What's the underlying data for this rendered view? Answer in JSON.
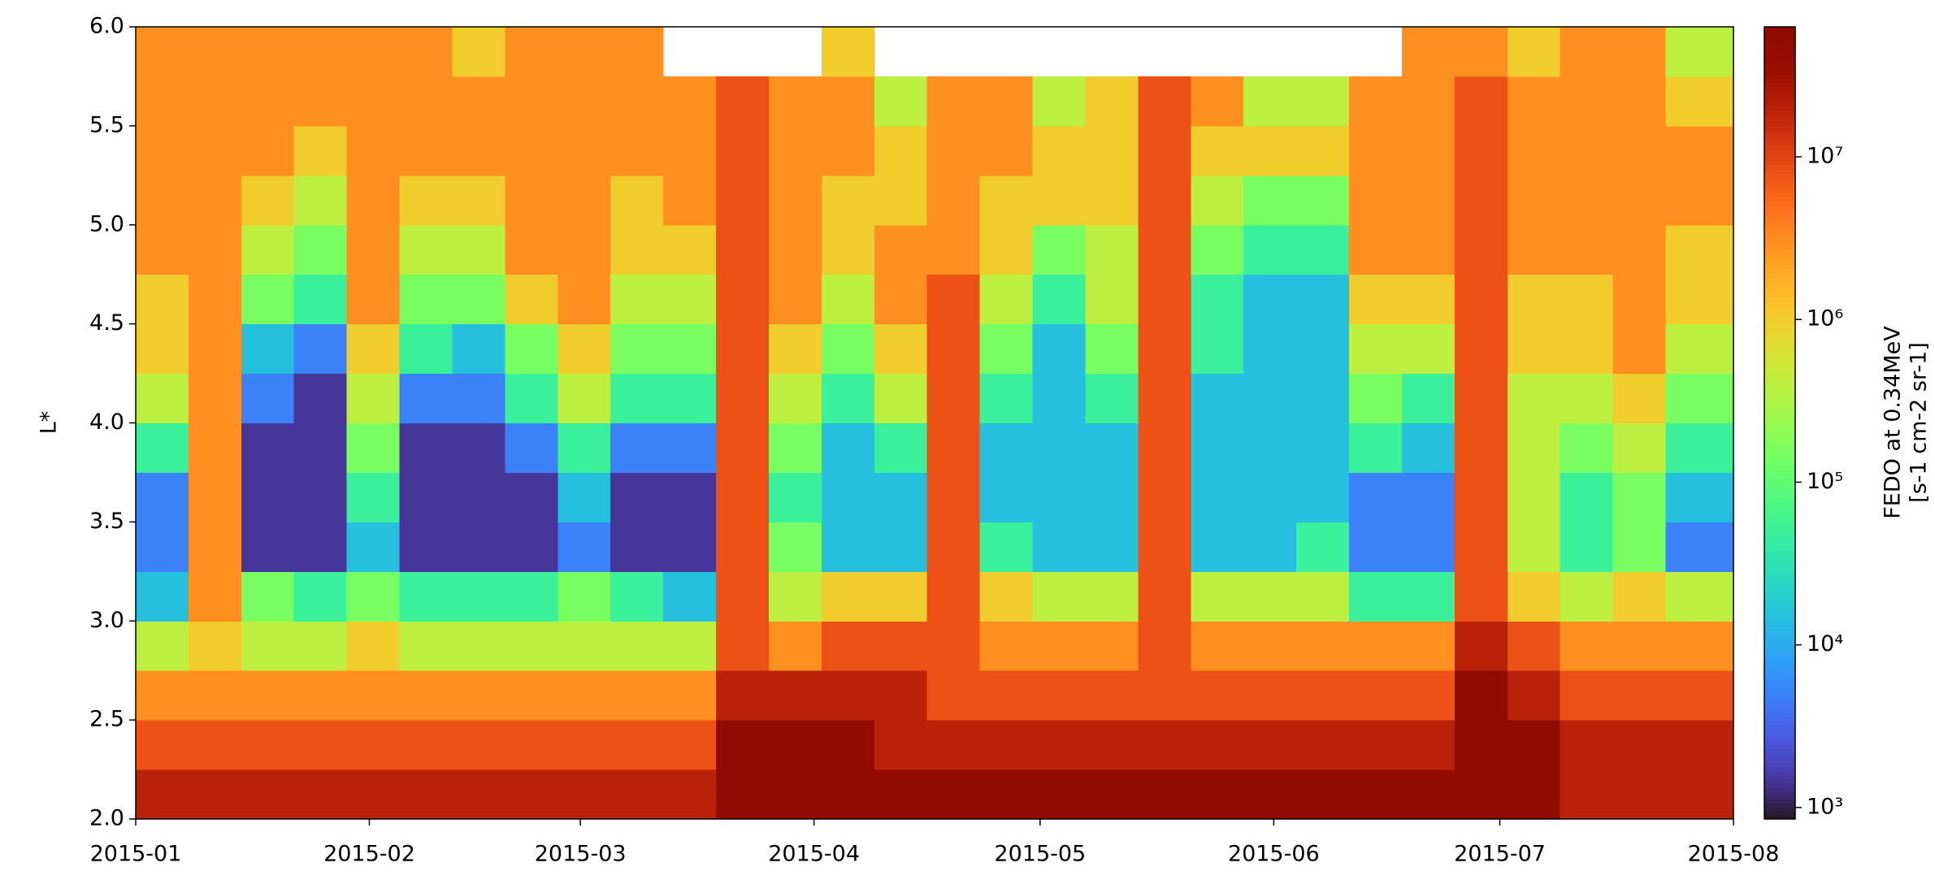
{
  "chart_data": {
    "type": "heatmap",
    "ylabel": "L*",
    "colorbar_label": [
      "FEDO at 0.34MeV",
      "[s-1 cm-2 sr-1]"
    ],
    "cmap": "turbo",
    "zscale": "log",
    "zlim": [
      850,
      63000000
    ],
    "zticks": [
      {
        "value": 1000,
        "label": "10³"
      },
      {
        "value": 10000,
        "label": "10⁴"
      },
      {
        "value": 100000,
        "label": "10⁵"
      },
      {
        "value": 1000000,
        "label": "10⁶"
      },
      {
        "value": 10000000,
        "label": "10⁷"
      }
    ],
    "xlim": [
      0,
      212
    ],
    "xticks": [
      {
        "value": 0,
        "label": "2015-01"
      },
      {
        "value": 31,
        "label": "2015-02"
      },
      {
        "value": 59,
        "label": "2015-03"
      },
      {
        "value": 90,
        "label": "2015-04"
      },
      {
        "value": 120,
        "label": "2015-05"
      },
      {
        "value": 151,
        "label": "2015-06"
      },
      {
        "value": 181,
        "label": "2015-07"
      },
      {
        "value": 212,
        "label": "2015-08"
      }
    ],
    "ylim": [
      2,
      6
    ],
    "yticks": [
      {
        "value": 2,
        "label": "2.0"
      },
      {
        "value": 2.5,
        "label": "2.5"
      },
      {
        "value": 3,
        "label": "3.0"
      },
      {
        "value": 3.5,
        "label": "3.5"
      },
      {
        "value": 4,
        "label": "4.0"
      },
      {
        "value": 4.5,
        "label": "4.5"
      },
      {
        "value": 5,
        "label": "5.0"
      },
      {
        "value": 5.5,
        "label": "5.5"
      },
      {
        "value": 6,
        "label": "6.0"
      }
    ],
    "xbins": [
      0,
      7,
      14,
      21,
      28,
      35,
      42,
      49,
      56,
      63,
      70,
      77,
      84,
      91,
      98,
      105,
      112,
      119,
      126,
      133,
      140,
      147,
      154,
      161,
      168,
      175,
      182,
      189,
      196,
      203,
      212
    ],
    "ybins": [
      2,
      2.25,
      2.5,
      2.75,
      3,
      3.25,
      3.5,
      3.75,
      4,
      4.25,
      4.5,
      4.75,
      5,
      5.25,
      5.5,
      5.75,
      6
    ],
    "values": [
      [
        20000000.0,
        8000000.0,
        3000000.0,
        400000.0,
        15000.0,
        5000.0,
        5000.0,
        50000.0,
        400000.0,
        1000000.0,
        1000000.0,
        3000000.0,
        3000000.0,
        3000000.0,
        3000000.0,
        3000000.0
      ],
      [
        20000000.0,
        8000000.0,
        3000000.0,
        1000000.0,
        3000000.0,
        3000000.0,
        3000000.0,
        3000000.0,
        3000000.0,
        3000000.0,
        3000000.0,
        3000000.0,
        3000000.0,
        3000000.0,
        3000000.0,
        3000000.0
      ],
      [
        20000000.0,
        8000000.0,
        3000000.0,
        400000.0,
        150000.0,
        1500.0,
        1500.0,
        1500.0,
        5000.0,
        15000.0,
        150000.0,
        400000.0,
        1000000.0,
        3000000.0,
        3000000.0,
        3000000.0
      ],
      [
        20000000.0,
        8000000.0,
        3000000.0,
        400000.0,
        50000.0,
        1500.0,
        1500.0,
        1500.0,
        1500.0,
        5000.0,
        50000.0,
        150000.0,
        400000.0,
        1000000.0,
        3000000.0,
        3000000.0
      ],
      [
        20000000.0,
        8000000.0,
        3000000.0,
        1000000.0,
        150000.0,
        15000.0,
        50000.0,
        150000.0,
        400000.0,
        1000000.0,
        3000000.0,
        3000000.0,
        3000000.0,
        3000000.0,
        3000000.0,
        3000000.0
      ],
      [
        20000000.0,
        8000000.0,
        3000000.0,
        400000.0,
        50000.0,
        1500.0,
        1500.0,
        1500.0,
        5000.0,
        50000.0,
        150000.0,
        400000.0,
        1000000.0,
        3000000.0,
        3000000.0,
        3000000.0
      ],
      [
        20000000.0,
        8000000.0,
        3000000.0,
        400000.0,
        50000.0,
        1500.0,
        1500.0,
        1500.0,
        5000.0,
        15000.0,
        150000.0,
        400000.0,
        1000000.0,
        3000000.0,
        3000000.0,
        1000000.0
      ],
      [
        20000000.0,
        8000000.0,
        3000000.0,
        400000.0,
        50000.0,
        1500.0,
        1500.0,
        5000.0,
        50000.0,
        150000.0,
        1000000.0,
        3000000.0,
        3000000.0,
        3000000.0,
        3000000.0,
        3000000.0
      ],
      [
        20000000.0,
        8000000.0,
        3000000.0,
        400000.0,
        150000.0,
        5000.0,
        15000.0,
        50000.0,
        400000.0,
        1000000.0,
        3000000.0,
        3000000.0,
        3000000.0,
        3000000.0,
        3000000.0,
        3000000.0
      ],
      [
        20000000.0,
        8000000.0,
        3000000.0,
        400000.0,
        50000.0,
        1500.0,
        1500.0,
        5000.0,
        50000.0,
        150000.0,
        400000.0,
        1000000.0,
        1000000.0,
        3000000.0,
        3000000.0,
        3000000.0
      ],
      [
        20000000.0,
        8000000.0,
        3000000.0,
        400000.0,
        15000.0,
        1500.0,
        1500.0,
        5000.0,
        50000.0,
        150000.0,
        400000.0,
        1000000.0,
        3000000.0,
        3000000.0,
        3000000.0,
        null
      ],
      [
        50000000.0,
        50000000.0,
        20000000.0,
        8000000.0,
        8000000.0,
        8000000.0,
        8000000.0,
        8000000.0,
        8000000.0,
        8000000.0,
        8000000.0,
        8000000.0,
        8000000.0,
        8000000.0,
        8000000.0,
        null
      ],
      [
        50000000.0,
        50000000.0,
        20000000.0,
        3000000.0,
        400000.0,
        150000.0,
        50000.0,
        150000.0,
        400000.0,
        1000000.0,
        3000000.0,
        3000000.0,
        3000000.0,
        3000000.0,
        3000000.0,
        null
      ],
      [
        50000000.0,
        50000000.0,
        20000000.0,
        8000000.0,
        1000000.0,
        15000.0,
        15000.0,
        15000.0,
        50000.0,
        150000.0,
        400000.0,
        1000000.0,
        1000000.0,
        3000000.0,
        3000000.0,
        1000000.0
      ],
      [
        50000000.0,
        20000000.0,
        20000000.0,
        8000000.0,
        1000000.0,
        15000.0,
        15000.0,
        50000.0,
        400000.0,
        1000000.0,
        3000000.0,
        3000000.0,
        1000000.0,
        1000000.0,
        400000.0,
        null
      ],
      [
        50000000.0,
        20000000.0,
        8000000.0,
        8000000.0,
        8000000.0,
        8000000.0,
        8000000.0,
        8000000.0,
        8000000.0,
        8000000.0,
        8000000.0,
        3000000.0,
        3000000.0,
        3000000.0,
        3000000.0,
        null
      ],
      [
        50000000.0,
        20000000.0,
        8000000.0,
        3000000.0,
        1000000.0,
        50000.0,
        15000.0,
        15000.0,
        50000.0,
        150000.0,
        400000.0,
        1000000.0,
        1000000.0,
        3000000.0,
        3000000.0,
        null
      ],
      [
        50000000.0,
        20000000.0,
        8000000.0,
        3000000.0,
        400000.0,
        15000.0,
        15000.0,
        15000.0,
        15000.0,
        15000.0,
        50000.0,
        150000.0,
        1000000.0,
        1000000.0,
        400000.0,
        null
      ],
      [
        50000000.0,
        20000000.0,
        8000000.0,
        3000000.0,
        400000.0,
        15000.0,
        15000.0,
        15000.0,
        50000.0,
        150000.0,
        400000.0,
        400000.0,
        1000000.0,
        1000000.0,
        1000000.0,
        null
      ],
      [
        50000000.0,
        20000000.0,
        8000000.0,
        8000000.0,
        8000000.0,
        8000000.0,
        8000000.0,
        8000000.0,
        8000000.0,
        8000000.0,
        8000000.0,
        8000000.0,
        8000000.0,
        8000000.0,
        8000000.0,
        null
      ],
      [
        50000000.0,
        20000000.0,
        8000000.0,
        3000000.0,
        400000.0,
        15000.0,
        15000.0,
        15000.0,
        15000.0,
        50000.0,
        50000.0,
        150000.0,
        400000.0,
        1000000.0,
        3000000.0,
        null
      ],
      [
        50000000.0,
        20000000.0,
        8000000.0,
        3000000.0,
        400000.0,
        15000.0,
        15000.0,
        15000.0,
        15000.0,
        15000.0,
        15000.0,
        50000.0,
        150000.0,
        1000000.0,
        400000.0,
        null
      ],
      [
        50000000.0,
        20000000.0,
        8000000.0,
        3000000.0,
        400000.0,
        50000.0,
        15000.0,
        15000.0,
        15000.0,
        15000.0,
        15000.0,
        50000.0,
        150000.0,
        1000000.0,
        400000.0,
        null
      ],
      [
        50000000.0,
        20000000.0,
        8000000.0,
        3000000.0,
        50000.0,
        5000.0,
        5000.0,
        50000.0,
        150000.0,
        400000.0,
        1000000.0,
        3000000.0,
        3000000.0,
        3000000.0,
        3000000.0,
        null
      ],
      [
        50000000.0,
        20000000.0,
        8000000.0,
        3000000.0,
        50000.0,
        5000.0,
        5000.0,
        15000.0,
        50000.0,
        400000.0,
        1000000.0,
        3000000.0,
        3000000.0,
        3000000.0,
        3000000.0,
        3000000.0
      ],
      [
        50000000.0,
        50000000.0,
        50000000.0,
        20000000.0,
        8000000.0,
        8000000.0,
        8000000.0,
        8000000.0,
        8000000.0,
        8000000.0,
        8000000.0,
        8000000.0,
        8000000.0,
        8000000.0,
        8000000.0,
        3000000.0
      ],
      [
        50000000.0,
        50000000.0,
        20000000.0,
        8000000.0,
        1000000.0,
        400000.0,
        400000.0,
        400000.0,
        400000.0,
        1000000.0,
        1000000.0,
        3000000.0,
        3000000.0,
        3000000.0,
        3000000.0,
        1000000.0
      ],
      [
        20000000.0,
        20000000.0,
        8000000.0,
        3000000.0,
        400000.0,
        50000.0,
        50000.0,
        150000.0,
        400000.0,
        1000000.0,
        1000000.0,
        3000000.0,
        3000000.0,
        3000000.0,
        3000000.0,
        3000000.0
      ],
      [
        20000000.0,
        20000000.0,
        8000000.0,
        3000000.0,
        1000000.0,
        150000.0,
        150000.0,
        400000.0,
        1000000.0,
        3000000.0,
        3000000.0,
        3000000.0,
        3000000.0,
        3000000.0,
        3000000.0,
        3000000.0
      ],
      [
        20000000.0,
        20000000.0,
        8000000.0,
        3000000.0,
        400000.0,
        5000.0,
        15000.0,
        50000.0,
        150000.0,
        400000.0,
        1000000.0,
        1000000.0,
        3000000.0,
        3000000.0,
        1000000.0,
        400000.0
      ]
    ]
  }
}
